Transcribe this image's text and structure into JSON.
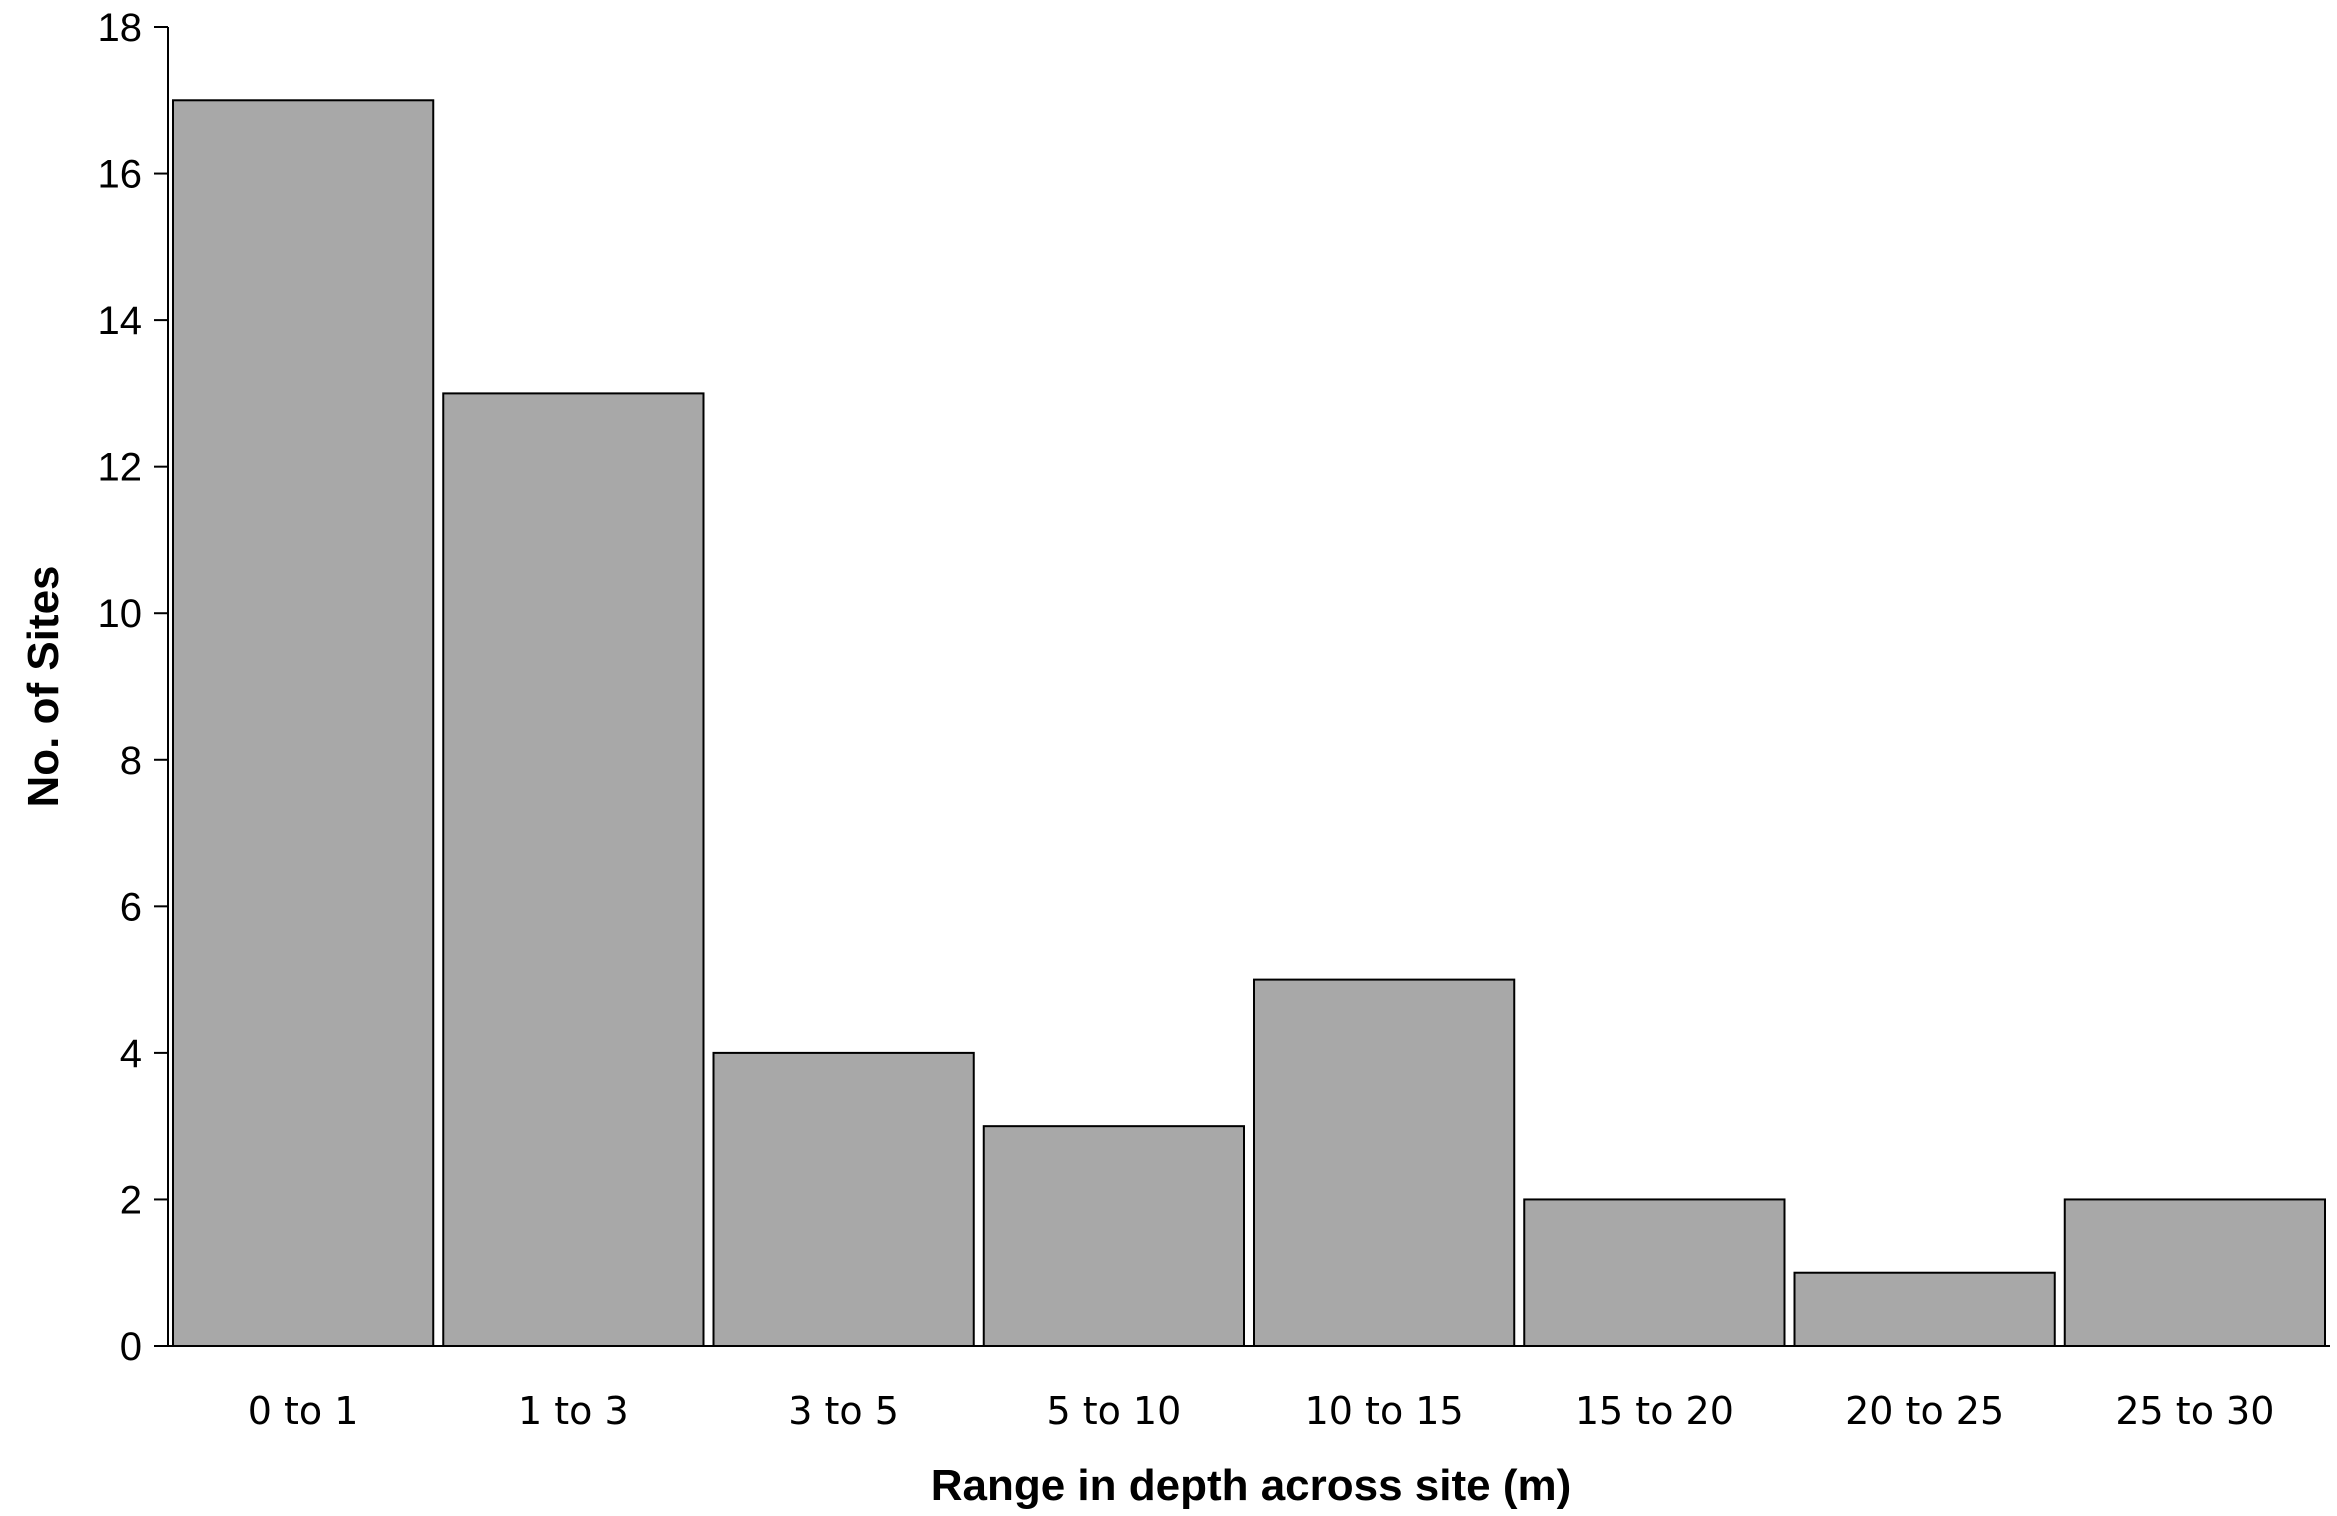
{
  "chart_data": {
    "type": "bar",
    "categories": [
      "0 to 1",
      "1 to 3",
      "3 to 5",
      "5 to 10",
      "10 to 15",
      "15 to 20",
      "20 to 25",
      "25 to 30"
    ],
    "values": [
      17,
      13,
      4,
      3,
      5,
      2,
      1,
      2
    ],
    "xlabel": "Range in depth across site (m)",
    "ylabel": "No. of Sites",
    "ylim": [
      0,
      18
    ],
    "yticks": [
      0,
      2,
      4,
      6,
      8,
      10,
      12,
      14,
      16,
      18
    ],
    "grid": false,
    "legend": "none",
    "colors": {
      "bar_fill": "#a8a8a8",
      "bar_stroke": "#000000",
      "axis": "#000000"
    }
  }
}
